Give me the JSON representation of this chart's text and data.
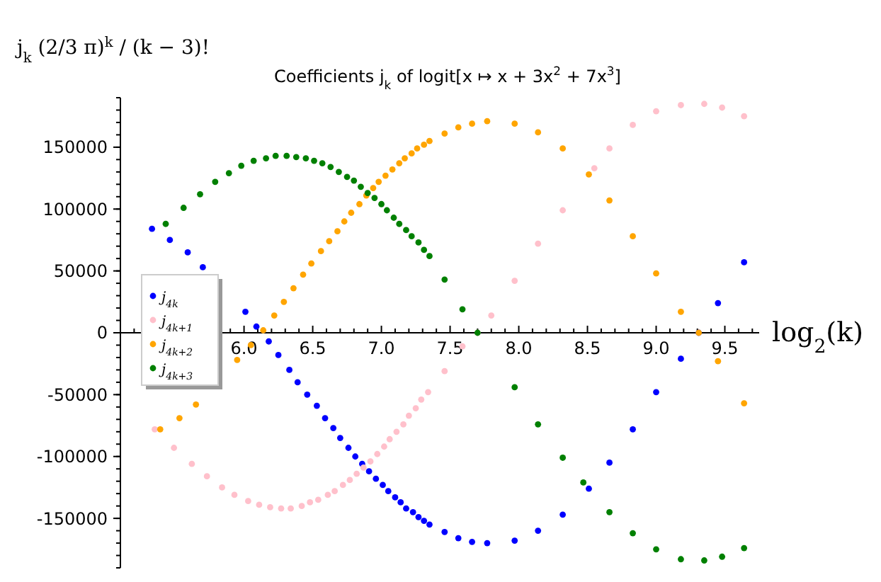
{
  "chart_data": {
    "type": "scatter",
    "title": "Coefficients j$_{k}$ of logit[x ↦ x + 3x$^{2}$ + 7x$^{3}$]",
    "ylabel": "j$_{k}$ (2/3 π)$^{k}$ / (k − 3)!",
    "xlabel": "log$_{2}$(k)",
    "xlim": [
      5.1,
      9.75
    ],
    "ylim": [
      -190000,
      190000
    ],
    "xticks": [
      {
        "value": 5.2,
        "label": null
      },
      {
        "value": 5.3,
        "label": null
      },
      {
        "value": 5.4,
        "label": null
      },
      {
        "value": 5.5,
        "label": null
      },
      {
        "value": 5.6,
        "label": null
      },
      {
        "value": 5.7,
        "label": null
      },
      {
        "value": 5.8,
        "label": null
      },
      {
        "value": 5.9,
        "label": null
      },
      {
        "value": 6,
        "label": "6.0"
      },
      {
        "value": 6.1,
        "label": null
      },
      {
        "value": 6.2,
        "label": null
      },
      {
        "value": 6.3,
        "label": null
      },
      {
        "value": 6.4,
        "label": null
      },
      {
        "value": 6.5,
        "label": "6.5"
      },
      {
        "value": 6.6,
        "label": null
      },
      {
        "value": 6.7,
        "label": null
      },
      {
        "value": 6.8,
        "label": null
      },
      {
        "value": 6.9,
        "label": null
      },
      {
        "value": 7,
        "label": "7.0"
      },
      {
        "value": 7.1,
        "label": null
      },
      {
        "value": 7.2,
        "label": null
      },
      {
        "value": 7.3,
        "label": null
      },
      {
        "value": 7.4,
        "label": null
      },
      {
        "value": 7.5,
        "label": "7.5"
      },
      {
        "value": 7.6,
        "label": null
      },
      {
        "value": 7.7,
        "label": null
      },
      {
        "value": 7.8,
        "label": null
      },
      {
        "value": 7.9,
        "label": null
      },
      {
        "value": 8,
        "label": "8.0"
      },
      {
        "value": 8.1,
        "label": null
      },
      {
        "value": 8.2,
        "label": null
      },
      {
        "value": 8.3,
        "label": null
      },
      {
        "value": 8.4,
        "label": null
      },
      {
        "value": 8.5,
        "label": "8.5"
      },
      {
        "value": 8.6,
        "label": null
      },
      {
        "value": 8.7,
        "label": null
      },
      {
        "value": 8.8,
        "label": null
      },
      {
        "value": 8.9,
        "label": null
      },
      {
        "value": 9,
        "label": "9.0"
      },
      {
        "value": 9.1,
        "label": null
      },
      {
        "value": 9.2,
        "label": null
      },
      {
        "value": 9.3,
        "label": null
      },
      {
        "value": 9.4,
        "label": null
      },
      {
        "value": 9.5,
        "label": "9.5"
      },
      {
        "value": 9.6,
        "label": null
      },
      {
        "value": 9.7,
        "label": null
      }
    ],
    "yticks": [
      -150000,
      -100000,
      -50000,
      0,
      50000,
      100000,
      150000
    ],
    "marker": "circle",
    "legend": "left",
    "grid": false,
    "series": [
      {
        "name": "j$_{4k}$",
        "color": "#0000ff",
        "x": [
          5.33,
          5.46,
          5.59,
          5.7,
          6.01,
          6.09,
          6.18,
          6.25,
          6.33,
          6.39,
          6.46,
          6.53,
          6.59,
          6.65,
          6.7,
          6.76,
          6.81,
          6.86,
          6.91,
          6.96,
          7.01,
          7.05,
          7.1,
          7.14,
          7.18,
          7.23,
          7.27,
          7.31,
          7.35,
          7.46,
          7.56,
          7.66,
          7.77,
          7.97,
          8.14,
          8.32,
          8.51,
          8.66,
          8.83,
          9.0,
          9.18,
          9.31,
          9.45,
          9.64
        ],
        "values": [
          84000,
          75000,
          65000,
          53000,
          17000,
          5000,
          -7000,
          -18000,
          -30000,
          -40000,
          -50000,
          -59000,
          -69000,
          -77000,
          -85000,
          -93000,
          -100000,
          -106000,
          -112000,
          -118000,
          -123000,
          -128000,
          -133000,
          -137000,
          -142000,
          -145000,
          -149000,
          -152000,
          -155000,
          -161000,
          -166000,
          -169000,
          -170000,
          -168000,
          -160000,
          -147000,
          -126000,
          -105000,
          -78000,
          -48000,
          -21000,
          0,
          24000,
          57000
        ]
      },
      {
        "name": "j$_{4k+1}$",
        "color": "#ffc0cb",
        "x": [
          5.35,
          5.49,
          5.62,
          5.73,
          5.84,
          5.93,
          6.03,
          6.11,
          6.19,
          6.27,
          6.34,
          6.42,
          6.48,
          6.54,
          6.61,
          6.66,
          6.72,
          6.77,
          6.82,
          6.87,
          6.92,
          6.97,
          7.02,
          7.06,
          7.11,
          7.16,
          7.2,
          7.25,
          7.29,
          7.34,
          7.46,
          7.59,
          7.7,
          7.8,
          7.97,
          8.14,
          8.32,
          8.55,
          8.66,
          8.83,
          9.0,
          9.18,
          9.35,
          9.48,
          9.64
        ],
        "values": [
          -78000,
          -93000,
          -106000,
          -116000,
          -125000,
          -131000,
          -136000,
          -139000,
          -141000,
          -142000,
          -142000,
          -140000,
          -137000,
          -135000,
          -131000,
          -128000,
          -123000,
          -119000,
          -114000,
          -109000,
          -104000,
          -98000,
          -92000,
          -86000,
          -80000,
          -74000,
          -67000,
          -61000,
          -54000,
          -48000,
          -31000,
          -11000,
          0,
          14000,
          42000,
          72000,
          99000,
          133000,
          149000,
          168000,
          179000,
          184000,
          185000,
          182000,
          175000
        ]
      },
      {
        "name": "j$_{4k+2}$",
        "color": "#ffa500",
        "x": [
          5.39,
          5.53,
          5.65,
          5.95,
          6.05,
          6.14,
          6.22,
          6.29,
          6.36,
          6.43,
          6.49,
          6.56,
          6.62,
          6.68,
          6.73,
          6.78,
          6.84,
          6.89,
          6.94,
          6.98,
          7.03,
          7.08,
          7.13,
          7.17,
          7.22,
          7.26,
          7.31,
          7.35,
          7.46,
          7.56,
          7.66,
          7.77,
          7.97,
          8.14,
          8.32,
          8.51,
          8.66,
          8.83,
          9.0,
          9.18,
          9.31,
          9.45,
          9.64
        ],
        "values": [
          -78000,
          -69000,
          -58000,
          -22000,
          -10000,
          2000,
          14000,
          25000,
          36000,
          47000,
          56000,
          66000,
          74000,
          82000,
          90000,
          97000,
          104000,
          111000,
          117000,
          122000,
          127000,
          132000,
          137000,
          141000,
          145000,
          149000,
          152000,
          155000,
          161000,
          166000,
          169000,
          171000,
          169000,
          162000,
          149000,
          128000,
          107000,
          78000,
          48000,
          17000,
          0,
          -23000,
          -57000
        ]
      },
      {
        "name": "j$_{4k+3}$",
        "color": "#008000",
        "x": [
          5.43,
          5.56,
          5.68,
          5.79,
          5.89,
          5.98,
          6.07,
          6.16,
          6.23,
          6.31,
          6.38,
          6.45,
          6.51,
          6.57,
          6.63,
          6.69,
          6.75,
          6.8,
          6.85,
          6.9,
          6.95,
          7.0,
          7.04,
          7.09,
          7.13,
          7.18,
          7.22,
          7.27,
          7.31,
          7.35,
          7.46,
          7.59,
          7.7,
          7.97,
          8.14,
          8.32,
          8.47,
          8.66,
          8.83,
          9.0,
          9.18,
          9.35,
          9.48,
          9.64
        ],
        "values": [
          88000,
          101000,
          112000,
          122000,
          129000,
          135000,
          139000,
          141000,
          143000,
          143000,
          142000,
          141000,
          139000,
          137000,
          134000,
          130000,
          126000,
          123000,
          118000,
          113000,
          109000,
          104000,
          99000,
          93000,
          88000,
          83000,
          78000,
          73000,
          67000,
          62000,
          43000,
          19000,
          0,
          -44000,
          -74000,
          -101000,
          -121000,
          -145000,
          -162000,
          -175000,
          -183000,
          -184000,
          -181000,
          -174000
        ]
      }
    ]
  }
}
